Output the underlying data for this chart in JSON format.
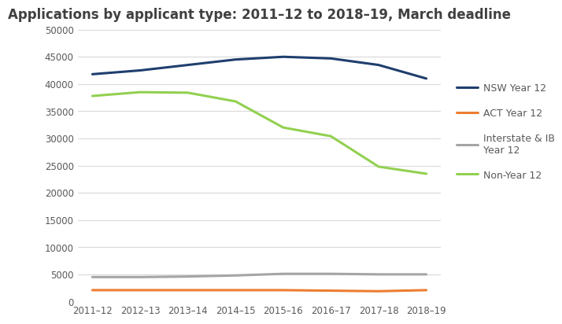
{
  "title": "Applications by applicant type: 2011–12 to 2018–19, March deadline",
  "x_labels": [
    "2011–12",
    "2012–13",
    "2013–14",
    "2014–15",
    "2015–16",
    "2016–17",
    "2017–18",
    "2018–19"
  ],
  "series": [
    {
      "name": "NSW Year 12",
      "color": "#1f3e6e",
      "linewidth": 2.2,
      "values": [
        41800,
        42500,
        43500,
        44500,
        45000,
        44700,
        43500,
        41000
      ]
    },
    {
      "name": "ACT Year 12",
      "color": "#ed7d31",
      "linewidth": 2.2,
      "values": [
        2100,
        2100,
        2100,
        2100,
        2100,
        2000,
        1900,
        2100
      ]
    },
    {
      "name": "Interstate & IB\nYear 12",
      "color": "#a5a5a5",
      "linewidth": 2.2,
      "values": [
        4500,
        4500,
        4600,
        4800,
        5100,
        5100,
        5000,
        5000
      ]
    },
    {
      "name": "Non-Year 12",
      "color": "#92d050",
      "linewidth": 2.2,
      "values": [
        37800,
        38500,
        38400,
        36800,
        32000,
        30400,
        24800,
        23500
      ]
    }
  ],
  "ylim": [
    0,
    50000
  ],
  "yticks": [
    0,
    5000,
    10000,
    15000,
    20000,
    25000,
    30000,
    35000,
    40000,
    45000,
    50000
  ],
  "ytick_labels": [
    "0",
    "5000",
    "10000",
    "15000",
    "20000",
    "25000",
    "30000",
    "35000",
    "40000",
    "45000",
    "50000"
  ],
  "background_color": "#ffffff",
  "grid_color": "#d9d9d9",
  "title_fontsize": 12,
  "title_color": "#404040",
  "tick_fontsize": 8.5,
  "tick_color": "#595959",
  "legend_fontsize": 9
}
